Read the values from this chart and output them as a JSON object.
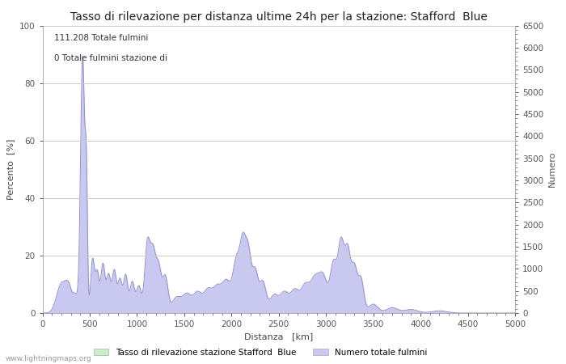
{
  "title": "Tasso di rilevazione per distanza ultime 24h per la stazione: Stafford  Blue",
  "xlabel": "Distanza   [km]",
  "ylabel_left": "Percento  [%]",
  "ylabel_right": "Numero",
  "xlim": [
    0,
    5000
  ],
  "ylim_left": [
    0,
    100
  ],
  "ylim_right": [
    0,
    6500
  ],
  "annotation_line1": "111.208 Totale fulmini",
  "annotation_line2": "0 Totale fulmini stazione di",
  "legend_green": "Tasso di rilevazione stazione Stafford  Blue",
  "legend_blue": "Numero totale fulmini",
  "watermark": "www.lightningmaps.org",
  "fill_color_blue": "#c8c8f0",
  "fill_color_green": "#c8f0c8",
  "line_color_blue": "#9090cc",
  "line_color_green": "#90cc90",
  "bg_color": "#ffffff",
  "grid_color": "#cccccc",
  "title_fontsize": 10,
  "axis_fontsize": 8,
  "tick_fontsize": 7.5,
  "xticks": [
    0,
    500,
    1000,
    1500,
    2000,
    2500,
    3000,
    3500,
    4000,
    4500,
    5000
  ],
  "yticks_left": [
    0,
    20,
    40,
    60,
    80,
    100
  ],
  "yticks_right_major": [
    0,
    500,
    1000,
    1500,
    2000,
    2500,
    3000,
    3500,
    4000,
    4500,
    5000,
    5500,
    6000,
    6500
  ]
}
